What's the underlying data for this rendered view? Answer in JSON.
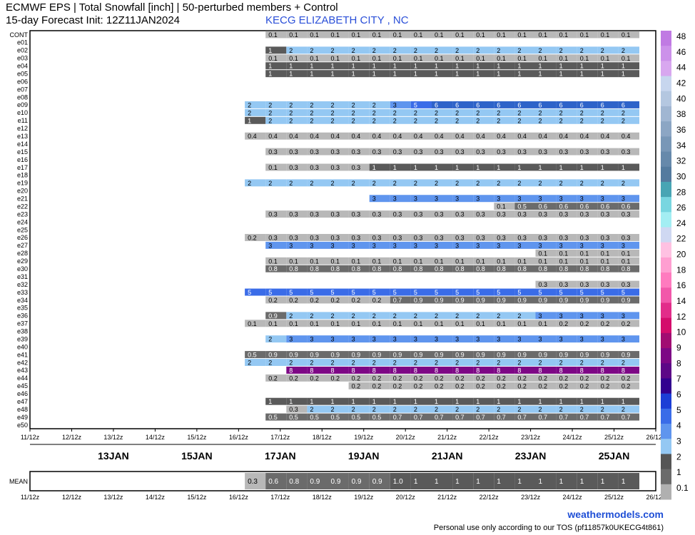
{
  "header": {
    "title": "ECMWF EPS | Total Snowfall [inch] | 50-perturbed members + Control",
    "subtitle": "15-day Forecast Init: 12Z11JAN2024",
    "location": "KECG ELIZABETH CITY , NC"
  },
  "footer": {
    "brand": "weathermodels.com",
    "tos": "Personal use only according to our TOS (pf11857k0UKECG4t861)"
  },
  "chart_data": {
    "type": "heatmap",
    "members": [
      "CONT",
      "e01",
      "e02",
      "e03",
      "e04",
      "e05",
      "e06",
      "e07",
      "e08",
      "e09",
      "e10",
      "e11",
      "e12",
      "e13",
      "e14",
      "e15",
      "e16",
      "e17",
      "e18",
      "e19",
      "e20",
      "e21",
      "e22",
      "e23",
      "e24",
      "e25",
      "e26",
      "e27",
      "e28",
      "e29",
      "e30",
      "e31",
      "e32",
      "e33",
      "e34",
      "e35",
      "e36",
      "e37",
      "e38",
      "e39",
      "e40",
      "e41",
      "e42",
      "e43",
      "e44",
      "e45",
      "e46",
      "e47",
      "e48",
      "e49",
      "e50"
    ],
    "x_ticks": [
      "11/12z",
      "12/12z",
      "13/12z",
      "14/12z",
      "15/12z",
      "16/12z",
      "17/12z",
      "18/12z",
      "19/12z",
      "20/12z",
      "21/12z",
      "22/12z",
      "23/12z",
      "24/12z",
      "25/12z",
      "26/12z"
    ],
    "date_labels": [
      "13JAN",
      "15JAN",
      "17JAN",
      "19JAN",
      "21JAN",
      "23JAN",
      "25JAN"
    ],
    "mean_label": "MEAN",
    "mean_values": [
      "0.3",
      "0.6",
      "0.8",
      "0.9",
      "0.9",
      "0.9",
      "0.9",
      "1.0",
      "1",
      "1",
      "1",
      "1",
      "1",
      "1",
      "1",
      "1",
      "1",
      "1",
      "1",
      "1"
    ],
    "rows": {
      "CONT": [
        "0.1",
        "0.1",
        "0.1",
        "0.1",
        "0.1",
        "0.1",
        "0.1",
        "0.1",
        "0.1",
        "0.1",
        "0.1",
        "0.1",
        "0.1",
        "0.1",
        "0.1",
        "0.1",
        "0.1",
        "0.1",
        "0.1"
      ],
      "e02": [
        "1",
        "2",
        "2",
        "2",
        "2",
        "2",
        "2",
        "2",
        "2",
        "2",
        "2",
        "2",
        "2",
        "2",
        "2",
        "2",
        "2",
        "2",
        "2"
      ],
      "e03": [
        "0.1",
        "0.1",
        "0.1",
        "0.1",
        "0.1",
        "0.1",
        "0.1",
        "0.1",
        "0.1",
        "0.1",
        "0.1",
        "0.1",
        "0.1",
        "0.1",
        "0.1",
        "0.1",
        "0.1",
        "0.1",
        "0.1"
      ],
      "e04": [
        "1",
        "1",
        "1",
        "1",
        "1",
        "1",
        "1",
        "1",
        "1",
        "1",
        "1",
        "1",
        "1",
        "1",
        "1",
        "1",
        "1",
        "1",
        "1"
      ],
      "e05": [
        "1",
        "1",
        "1",
        "1",
        "1",
        "1",
        "1",
        "1",
        "1",
        "1",
        "1",
        "1",
        "1",
        "1",
        "1",
        "1",
        "1",
        "1",
        "1"
      ],
      "e09": [
        "2",
        "2",
        "2",
        "2",
        "2",
        "2",
        "2",
        "3",
        "5",
        "6",
        "6",
        "6",
        "6",
        "6",
        "6",
        "6",
        "6",
        "6",
        "6",
        "6"
      ],
      "e10": [
        "2",
        "2",
        "2",
        "2",
        "2",
        "2",
        "2",
        "2",
        "2",
        "2",
        "2",
        "2",
        "2",
        "2",
        "2",
        "2",
        "2",
        "2",
        "2",
        "2"
      ],
      "e11": [
        "1",
        "2",
        "2",
        "2",
        "2",
        "2",
        "2",
        "2",
        "2",
        "2",
        "2",
        "2",
        "2",
        "2",
        "2",
        "2",
        "2",
        "2",
        "2",
        "2"
      ],
      "e13": [
        "0.4",
        "0.4",
        "0.4",
        "0.4",
        "0.4",
        "0.4",
        "0.4",
        "0.4",
        "0.4",
        "0.4",
        "0.4",
        "0.4",
        "0.4",
        "0.4",
        "0.4",
        "0.4",
        "0.4",
        "0.4",
        "0.4",
        "0.4"
      ],
      "e15": [
        "0.3",
        "0.3",
        "0.3",
        "0.3",
        "0.3",
        "0.3",
        "0.3",
        "0.3",
        "0.3",
        "0.3",
        "0.3",
        "0.3",
        "0.3",
        "0.3",
        "0.3",
        "0.3",
        "0.3",
        "0.3",
        "0.3"
      ],
      "e17": [
        "0.1",
        "0.3",
        "0.3",
        "0.3",
        "0.3",
        "1",
        "1",
        "1",
        "1",
        "1",
        "1",
        "1",
        "1",
        "1",
        "1",
        "1",
        "1",
        "1",
        "1"
      ],
      "e19": [
        "2",
        "2",
        "2",
        "2",
        "2",
        "2",
        "2",
        "2",
        "2",
        "2",
        "2",
        "2",
        "2",
        "2",
        "2",
        "2",
        "2",
        "2",
        "2",
        "2"
      ],
      "e21": [
        "3",
        "3",
        "3",
        "3",
        "3",
        "3",
        "3",
        "3",
        "3",
        "3",
        "3",
        "3",
        "3",
        "3"
      ],
      "e22": [
        "0.1",
        "0.5",
        "0.6",
        "0.6",
        "0.6",
        "0.6",
        "0.6",
        "0.6"
      ],
      "e23": [
        "0.3",
        "0.3",
        "0.3",
        "0.3",
        "0.3",
        "0.3",
        "0.3",
        "0.3",
        "0.3",
        "0.3",
        "0.3",
        "0.3",
        "0.3",
        "0.3",
        "0.3",
        "0.3",
        "0.3",
        "0.3",
        "0.3"
      ],
      "e26": [
        "0.2",
        "0.3",
        "0.3",
        "0.3",
        "0.3",
        "0.3",
        "0.3",
        "0.3",
        "0.3",
        "0.3",
        "0.3",
        "0.3",
        "0.3",
        "0.3",
        "0.3",
        "0.3",
        "0.3",
        "0.3",
        "0.3",
        "0.3"
      ],
      "e27": [
        "3",
        "3",
        "3",
        "3",
        "3",
        "3",
        "3",
        "3",
        "3",
        "3",
        "3",
        "3",
        "3",
        "3",
        "3",
        "3",
        "3",
        "3",
        "3"
      ],
      "e28": [
        "0.1",
        "0.1",
        "0.1",
        "0.1",
        "0.1",
        "0.1"
      ],
      "e29": [
        "0.1",
        "0.1",
        "0.1",
        "0.1",
        "0.1",
        "0.1",
        "0.1",
        "0.1",
        "0.1",
        "0.1",
        "0.1",
        "0.1",
        "0.1",
        "0.1",
        "0.1",
        "0.1",
        "0.1",
        "0.1",
        "0.1"
      ],
      "e30": [
        "0.8",
        "0.8",
        "0.8",
        "0.8",
        "0.8",
        "0.8",
        "0.8",
        "0.8",
        "0.8",
        "0.8",
        "0.8",
        "0.8",
        "0.8",
        "0.8",
        "0.8",
        "0.8",
        "0.8",
        "0.8",
        "0.8"
      ],
      "e32": [
        "0.3",
        "0.3",
        "0.3",
        "0.3",
        "0.3",
        "0.3"
      ],
      "e33": [
        "5",
        "5",
        "5",
        "5",
        "5",
        "5",
        "5",
        "5",
        "5",
        "5",
        "5",
        "5",
        "5",
        "5",
        "5",
        "5",
        "5",
        "5",
        "5",
        "5"
      ],
      "e34": [
        "0.2",
        "0.2",
        "0.2",
        "0.2",
        "0.2",
        "0.2",
        "0.7",
        "0.9",
        "0.9",
        "0.9",
        "0.9",
        "0.9",
        "0.9",
        "0.9",
        "0.9",
        "0.9",
        "0.9",
        "0.9",
        "0.9"
      ],
      "e36": [
        "0.9",
        "2",
        "2",
        "2",
        "2",
        "2",
        "2",
        "2",
        "2",
        "2",
        "2",
        "2",
        "2",
        "3",
        "3",
        "3",
        "3",
        "3",
        "3"
      ],
      "e37": [
        "0.1",
        "0.1",
        "0.1",
        "0.1",
        "0.1",
        "0.1",
        "0.1",
        "0.1",
        "0.1",
        "0.1",
        "0.1",
        "0.1",
        "0.1",
        "0.1",
        "0.1",
        "0.2",
        "0.2",
        "0.2",
        "0.2",
        "0.2"
      ],
      "e39": [
        "2",
        "3",
        "3",
        "3",
        "3",
        "3",
        "3",
        "3",
        "3",
        "3",
        "3",
        "3",
        "3",
        "3",
        "3",
        "3",
        "3",
        "3",
        "3"
      ],
      "e41": [
        "0.5",
        "0.9",
        "0.9",
        "0.9",
        "0.9",
        "0.9",
        "0.9",
        "0.9",
        "0.9",
        "0.9",
        "0.9",
        "0.9",
        "0.9",
        "0.9",
        "0.9",
        "0.9",
        "0.9",
        "0.9",
        "0.9",
        "0.9"
      ],
      "e42": [
        "2",
        "2",
        "2",
        "2",
        "2",
        "2",
        "2",
        "2",
        "2",
        "2",
        "2",
        "2",
        "2",
        "2",
        "2",
        "2",
        "2",
        "2",
        "2",
        "2"
      ],
      "e43": [
        "8",
        "8",
        "8",
        "8",
        "8",
        "8",
        "8",
        "8",
        "8",
        "8",
        "8",
        "8",
        "8",
        "8",
        "8",
        "8",
        "8",
        "8"
      ],
      "e44": [
        "0.2",
        "0.2",
        "0.2",
        "0.2",
        "0.2",
        "0.2",
        "0.2",
        "0.2",
        "0.2",
        "0.2",
        "0.2",
        "0.2",
        "0.2",
        "0.2",
        "0.2",
        "0.2",
        "0.2",
        "0.2",
        "0.2"
      ],
      "e45": [
        "0.2",
        "0.2",
        "0.2",
        "0.2",
        "0.2",
        "0.2",
        "0.2",
        "0.2",
        "0.2",
        "0.2",
        "0.2",
        "0.2",
        "0.2",
        "0.2",
        "0.2"
      ],
      "e47": [
        "1",
        "1",
        "1",
        "1",
        "1",
        "1",
        "1",
        "1",
        "1",
        "1",
        "1",
        "1",
        "1",
        "1",
        "1",
        "1",
        "1",
        "1",
        "1"
      ],
      "e48": [
        "0.3",
        "2",
        "2",
        "2",
        "2",
        "2",
        "2",
        "2",
        "2",
        "2",
        "2",
        "2",
        "2",
        "2",
        "2",
        "2",
        "2",
        "2"
      ],
      "e49": [
        "0.5",
        "0.5",
        "0.5",
        "0.5",
        "0.5",
        "0.5",
        "0.7",
        "0.7",
        "0.7",
        "0.7",
        "0.7",
        "0.7",
        "0.7",
        "0.7",
        "0.7",
        "0.7",
        "0.7",
        "0.7",
        "0.7"
      ]
    },
    "colorbar_labels": [
      "48",
      "46",
      "44",
      "42",
      "40",
      "38",
      "36",
      "34",
      "32",
      "30",
      "28",
      "26",
      "24",
      "22",
      "20",
      "18",
      "16",
      "14",
      "12",
      "10",
      "9",
      "8",
      "7",
      "6",
      "5",
      "4",
      "3",
      "2",
      "1",
      "0.1"
    ],
    "colorbar_colors": [
      "#c07ae3",
      "#cc91ea",
      "#d8a7ef",
      "#c7d6ee",
      "#b4c7e0",
      "#a0b6d2",
      "#8ca6c4",
      "#7897b7",
      "#6689ab",
      "#547b9f",
      "#48a5b4",
      "#78d6e0",
      "#a3eef3",
      "#cfd8f2",
      "#ffc1e2",
      "#ff9fd1",
      "#ff7bbf",
      "#f258aa",
      "#e22d8a",
      "#d40d6c",
      "#a10c72",
      "#7d0785",
      "#5d0787",
      "#32008f",
      "#1c3ed6",
      "#3a6ce8",
      "#5f95ee",
      "#94c8f3",
      "#555555",
      "#6b6b6b",
      "#b0b0b0"
    ]
  }
}
